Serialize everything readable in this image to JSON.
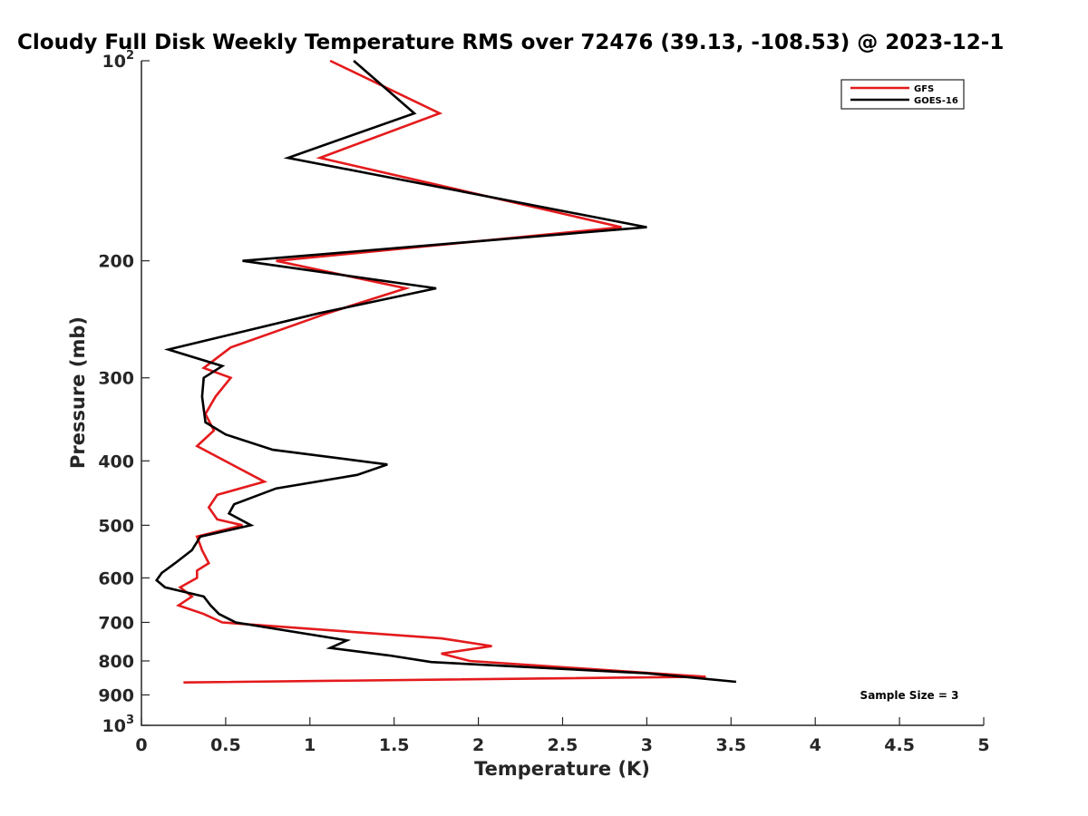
{
  "chart_data": {
    "type": "line",
    "title": "Cloudy Full Disk Weekly Temperature RMS over 72476 (39.13, -108.53) @ 2023-12-1",
    "xlabel": "Temperature (K)",
    "ylabel": "Pressure (mb)",
    "xlim": [
      0,
      5
    ],
    "ylim": [
      100,
      1000
    ],
    "y_scale": "log",
    "y_reversed": true,
    "grid": false,
    "legend_position": "top-right",
    "x_ticks": [
      0,
      0.5,
      1,
      1.5,
      2,
      2.5,
      3,
      3.5,
      4,
      4.5,
      5
    ],
    "x_tick_labels": [
      "0",
      "0.5",
      "1",
      "1.5",
      "2",
      "2.5",
      "3",
      "3.5",
      "4",
      "4.5",
      "5"
    ],
    "y_ticks": [
      100,
      200,
      300,
      400,
      500,
      600,
      700,
      800,
      900,
      1000
    ],
    "y_tick_labels": [
      "10^2",
      "200",
      "300",
      "400",
      "500",
      "600",
      "700",
      "800",
      "900",
      "10^3"
    ],
    "annotation": "Sample Size = 3",
    "series": [
      {
        "name": "GFS",
        "color": "#e41a1c",
        "points": [
          [
            1.12,
            100
          ],
          [
            1.77,
            120
          ],
          [
            1.06,
            140
          ],
          [
            2.85,
            178
          ],
          [
            0.8,
            200
          ],
          [
            1.57,
            220
          ],
          [
            1.1,
            240
          ],
          [
            0.53,
            270
          ],
          [
            0.37,
            290
          ],
          [
            0.53,
            300
          ],
          [
            0.44,
            320
          ],
          [
            0.38,
            340
          ],
          [
            0.43,
            360
          ],
          [
            0.33,
            380
          ],
          [
            0.73,
            430
          ],
          [
            0.45,
            450
          ],
          [
            0.4,
            470
          ],
          [
            0.45,
            490
          ],
          [
            0.6,
            500
          ],
          [
            0.33,
            520
          ],
          [
            0.36,
            545
          ],
          [
            0.4,
            570
          ],
          [
            0.33,
            585
          ],
          [
            0.33,
            600
          ],
          [
            0.23,
            620
          ],
          [
            0.3,
            640
          ],
          [
            0.22,
            660
          ],
          [
            0.37,
            680
          ],
          [
            0.48,
            700
          ],
          [
            1.78,
            740
          ],
          [
            2.08,
            760
          ],
          [
            1.78,
            780
          ],
          [
            1.95,
            800
          ],
          [
            3.35,
            845
          ],
          [
            0.25,
            862
          ]
        ]
      },
      {
        "name": "GOES-16",
        "color": "#000000",
        "points": [
          [
            1.26,
            100
          ],
          [
            1.62,
            120
          ],
          [
            0.87,
            140
          ],
          [
            3.0,
            178
          ],
          [
            0.6,
            200
          ],
          [
            1.75,
            220
          ],
          [
            1.05,
            240
          ],
          [
            0.16,
            272
          ],
          [
            0.48,
            288
          ],
          [
            0.37,
            300
          ],
          [
            0.36,
            320
          ],
          [
            0.38,
            350
          ],
          [
            0.5,
            365
          ],
          [
            0.78,
            385
          ],
          [
            1.46,
            405
          ],
          [
            1.28,
            420
          ],
          [
            0.8,
            440
          ],
          [
            0.55,
            465
          ],
          [
            0.52,
            480
          ],
          [
            0.65,
            500
          ],
          [
            0.35,
            520
          ],
          [
            0.3,
            545
          ],
          [
            0.2,
            570
          ],
          [
            0.12,
            590
          ],
          [
            0.09,
            605
          ],
          [
            0.14,
            620
          ],
          [
            0.37,
            640
          ],
          [
            0.41,
            660
          ],
          [
            0.46,
            680
          ],
          [
            0.56,
            700
          ],
          [
            1.22,
            745
          ],
          [
            1.12,
            765
          ],
          [
            1.47,
            785
          ],
          [
            1.72,
            803
          ],
          [
            3.0,
            835
          ],
          [
            3.53,
            860
          ]
        ]
      }
    ]
  }
}
